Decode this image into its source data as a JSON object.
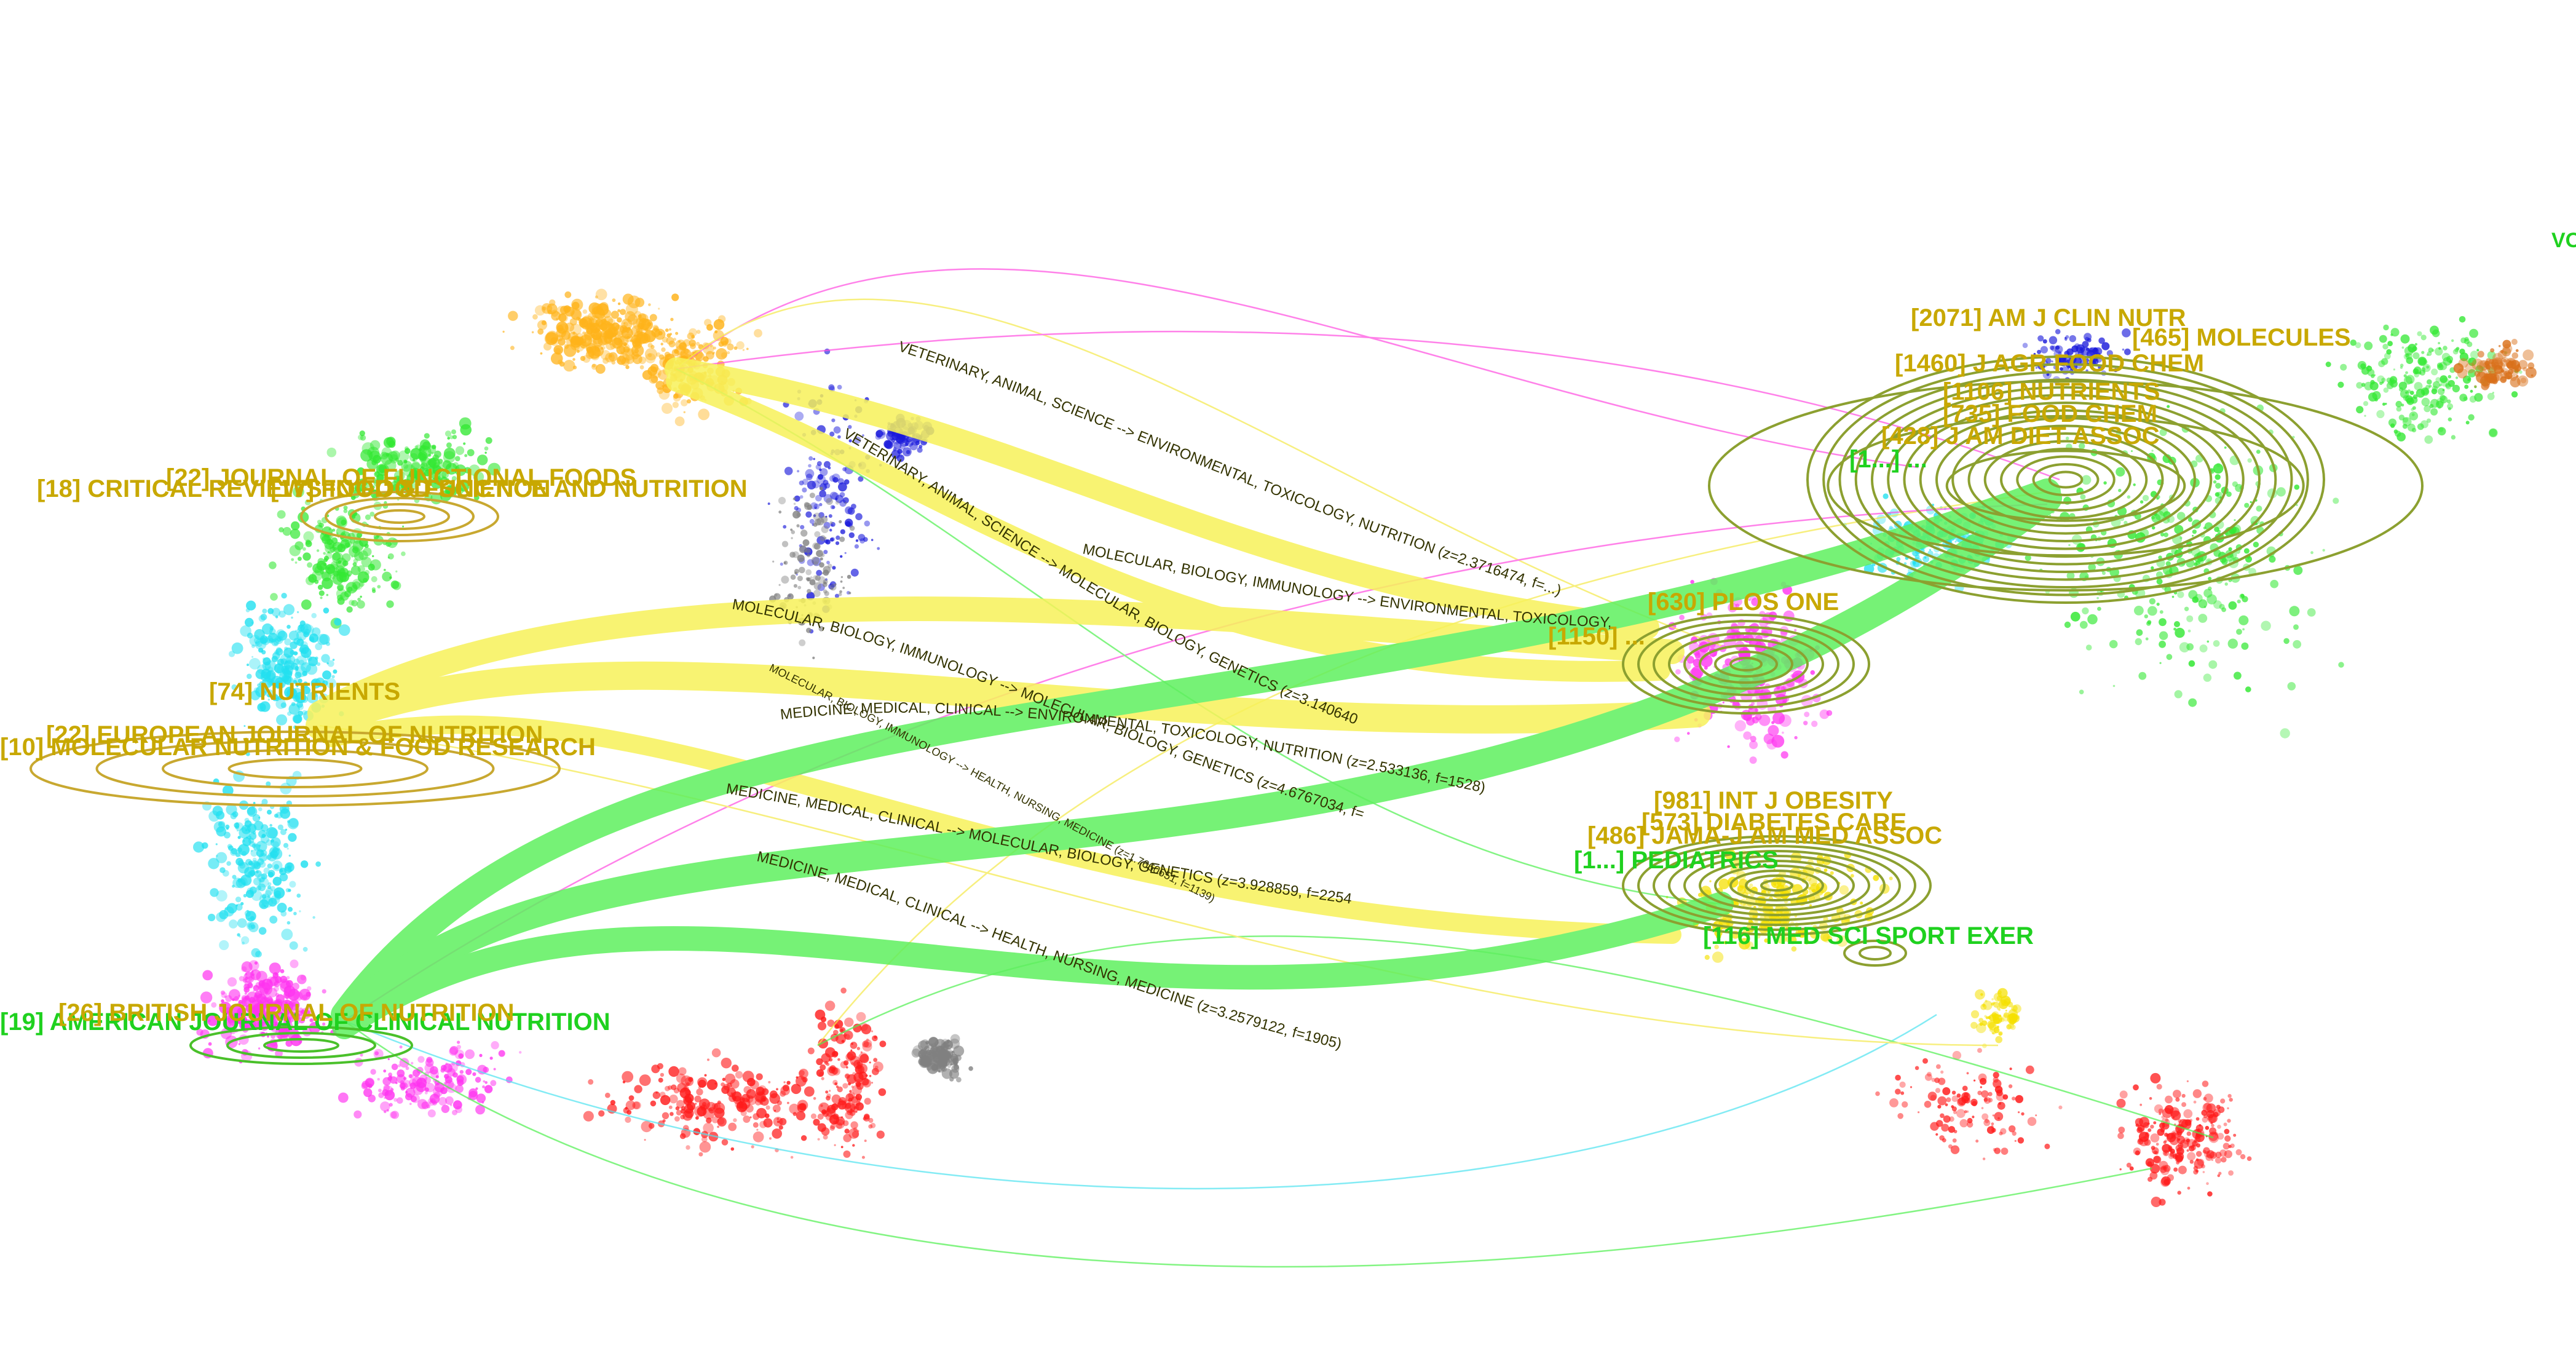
{
  "left_journals": [
    {
      "id": "cluster-18",
      "label": "[18] CRITICAL REVIEWS IN FOOD SCIENCE AND NUTRITION",
      "color": "#c8a800"
    },
    {
      "id": "cluster-22a",
      "label": "[22] JOURNAL OF FUNCTIONAL FOODS",
      "color": "#c8a800"
    },
    {
      "id": "cluster-17",
      "label": "[17] FOOD & FUNCTION",
      "color": "#c8a800"
    },
    {
      "id": "cluster-74",
      "label": "[74] NUTRIENTS",
      "color": "#c8a800"
    },
    {
      "id": "cluster-22b",
      "label": "[22] EUROPEAN JOURNAL OF NUTRITION",
      "color": "#c8a800"
    },
    {
      "id": "cluster-10",
      "label": "[10] MOLECULAR NUTRITION & FOOD RESEARCH",
      "color": "#c8a800"
    },
    {
      "id": "cluster-19",
      "label": "[19] AMERICAN JOURNAL OF CLINICAL NUTRITION",
      "color": "#1fd11f"
    },
    {
      "id": "cluster-26",
      "label": "[26] BRITISH JOURNAL OF NUTRITION",
      "color": "#c8a800"
    }
  ],
  "right_journals": [
    {
      "id": "r-2071",
      "label": "[2071] AM J CLIN NUTR",
      "color": "#c8a800"
    },
    {
      "id": "r-465",
      "label": "[465] MOLECULES",
      "color": "#c8a800"
    },
    {
      "id": "r-1460",
      "label": "[1460] J AGR FOOD CHEM",
      "color": "#c8a800"
    },
    {
      "id": "r-nutrients",
      "label": "[1106] NUTRIENTS",
      "color": "#c8a800"
    },
    {
      "id": "r-foodchem",
      "label": "[735] FOOD CHEM",
      "color": "#c8a800"
    },
    {
      "id": "r-jamdiet",
      "label": "[428] J AM DIET ASSOC",
      "color": "#c8a800"
    },
    {
      "id": "r-cluster-g",
      "label": "[1...] ...",
      "color": "#1fd11f"
    },
    {
      "id": "r-630",
      "label": "[630] PLOS ONE",
      "color": "#c8a800"
    },
    {
      "id": "r-plos-cluster",
      "label": "[1150] ...",
      "color": "#c8a800"
    },
    {
      "id": "r-981",
      "label": "[981] INT J OBESITY",
      "color": "#c8a800"
    },
    {
      "id": "r-diab",
      "label": "[573] DIABETES CARE",
      "color": "#c8a800"
    },
    {
      "id": "r-jama",
      "label": "[486] JAMA-J AM MED ASSOC",
      "color": "#c8a800"
    },
    {
      "id": "r-ped",
      "label": "[1...] PEDIATRICS",
      "color": "#1fd11f"
    },
    {
      "id": "r-116",
      "label": "[116] MED SCI SPORT EXER",
      "color": "#1fd11f"
    }
  ],
  "corner_label": "VO",
  "citation_paths": [
    {
      "label": "VETERINARY, ANIMAL, SCIENCE --> ENVIRONMENTAL, TOXICOLOGY, NUTRITION (z=2.3716474, f=...)",
      "color": "#f7f25a"
    },
    {
      "label": "VETERINARY, ANIMAL, SCIENCE --> MOLECULAR, BIOLOGY, GENETICS (z=3.1406407, f=1844)",
      "color": "#f7f25a"
    },
    {
      "label": "MOLECULAR, BIOLOGY, IMMUNOLOGY --> ENVIRONMENTAL, TOXICOLOGY, NUTRITION (z=2.417787, f=1468)",
      "color": "#f7f25a"
    },
    {
      "label": "MOLECULAR, BIOLOGY, IMMUNOLOGY --> MOLECULAR, BIOLOGY, GENETICS (z=4.6767034, f=2640)",
      "color": "#f7f25a"
    },
    {
      "label": "MOLECULAR, BIOLOGY, IMMUNOLOGY --> HEALTH, NURSING, MEDICINE (z=1.7660651, f=1139)",
      "color": "#f7f25a"
    },
    {
      "label": "MEDICINE, MEDICAL, CLINICAL --> ENVIRONMENTAL, TOXICOLOGY, NUTRITION (z=2.533136, f=1528)",
      "color": "#5ff05f"
    },
    {
      "label": "MEDICINE, MEDICAL, CLINICAL --> MOLECULAR, BIOLOGY, GENETICS (z=3.928859, f=2254)",
      "color": "#5ff05f"
    },
    {
      "label": "MEDICINE, MEDICAL, CLINICAL --> HEALTH, NURSING, MEDICINE (z=3.2579122, f=1905)",
      "color": "#5ff05f"
    }
  ],
  "cluster_colors": {
    "orange": "#ffb31a",
    "green": "#33e833",
    "blue": "#1a1adb",
    "cyan": "#22e0f0",
    "magenta": "#ff33f0",
    "red": "#ff1a1a",
    "grey": "#808080",
    "yellow": "#f5e000",
    "brown": "#d9701a",
    "olive": "#8ca030"
  }
}
